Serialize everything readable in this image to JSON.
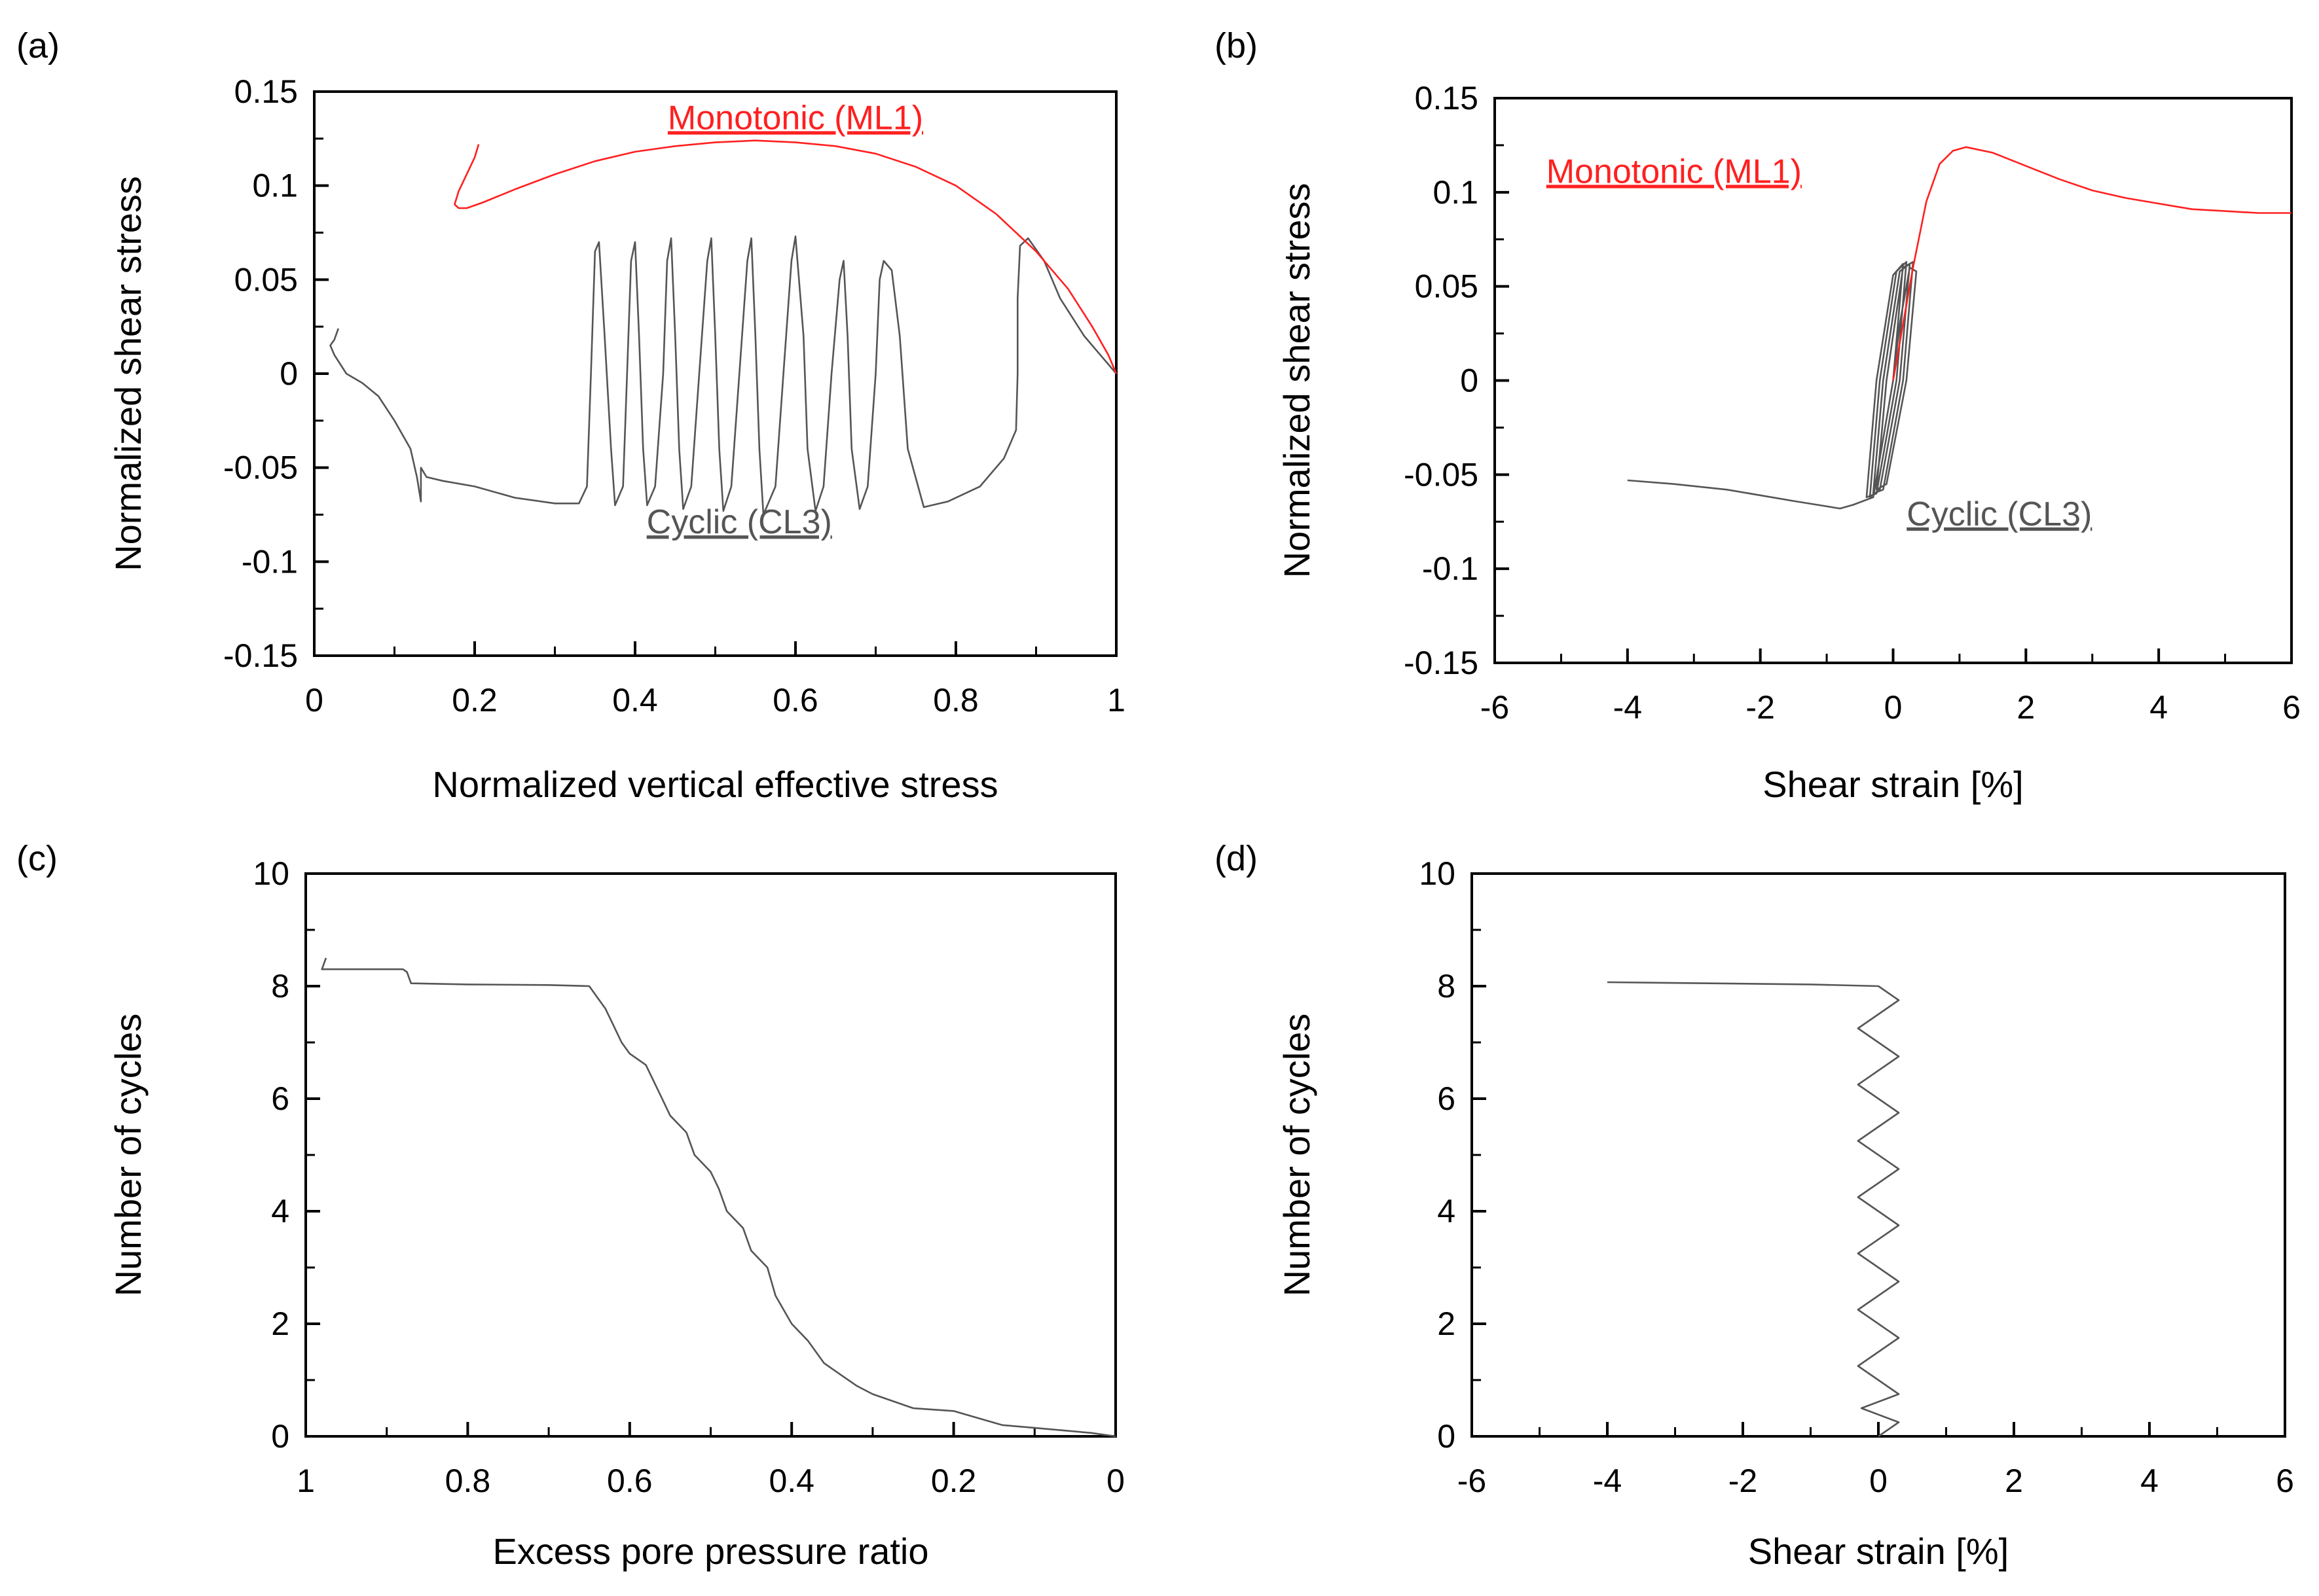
{
  "colors": {
    "cyclic": "#555555",
    "monotonic": "#ff2020",
    "axis": "#000000"
  },
  "chart_data": [
    {
      "panel": "(a)",
      "type": "line",
      "xlabel": "Normalized vertical effective stress",
      "ylabel": "Normalized shear stress",
      "xlim": [
        0,
        1
      ],
      "ylim": [
        -0.15,
        0.15
      ],
      "xticks": [
        0,
        0.2,
        0.4,
        0.6,
        0.8,
        1
      ],
      "xtick_labels": [
        "0",
        "0.2",
        "0.4",
        "0.6",
        "0.8",
        "1"
      ],
      "yticks": [
        -0.15,
        -0.1,
        -0.05,
        0,
        0.05,
        0.1,
        0.15
      ],
      "ytick_labels": [
        "-0.15",
        "-0.1",
        "-0.05",
        "0",
        "0.05",
        "0.1",
        "0.15"
      ],
      "annotations": [
        {
          "text": "Monotonic (ML1)",
          "series": "monotonic",
          "x": 0.6,
          "y": 0.13
        },
        {
          "text": "Cyclic (CL3)",
          "series": "cyclic",
          "x": 0.53,
          "y": -0.085
        }
      ],
      "series": [
        {
          "key": "cyclic",
          "points": [
            [
              1.0,
              0.0
            ],
            [
              0.99,
              0.005
            ],
            [
              0.98,
              0.01
            ],
            [
              0.96,
              0.02
            ],
            [
              0.93,
              0.04
            ],
            [
              0.91,
              0.06
            ],
            [
              0.89,
              0.072
            ],
            [
              0.88,
              0.068
            ],
            [
              0.877,
              0.04
            ],
            [
              0.877,
              0.0
            ],
            [
              0.875,
              -0.03
            ],
            [
              0.86,
              -0.045
            ],
            [
              0.83,
              -0.06
            ],
            [
              0.79,
              -0.068
            ],
            [
              0.76,
              -0.071
            ],
            [
              0.74,
              -0.04
            ],
            [
              0.73,
              0.02
            ],
            [
              0.72,
              0.055
            ],
            [
              0.71,
              0.06
            ],
            [
              0.705,
              0.05
            ],
            [
              0.7,
              0.0
            ],
            [
              0.69,
              -0.06
            ],
            [
              0.68,
              -0.072
            ],
            [
              0.67,
              -0.04
            ],
            [
              0.665,
              0.02
            ],
            [
              0.66,
              0.06
            ],
            [
              0.655,
              0.05
            ],
            [
              0.645,
              0.0
            ],
            [
              0.635,
              -0.06
            ],
            [
              0.625,
              -0.073
            ],
            [
              0.615,
              -0.04
            ],
            [
              0.61,
              0.02
            ],
            [
              0.6,
              0.073
            ],
            [
              0.595,
              0.06
            ],
            [
              0.585,
              0.0
            ],
            [
              0.575,
              -0.06
            ],
            [
              0.56,
              -0.075
            ],
            [
              0.555,
              -0.04
            ],
            [
              0.55,
              0.02
            ],
            [
              0.545,
              0.072
            ],
            [
              0.54,
              0.06
            ],
            [
              0.53,
              0.0
            ],
            [
              0.52,
              -0.06
            ],
            [
              0.51,
              -0.073
            ],
            [
              0.505,
              -0.04
            ],
            [
              0.5,
              0.02
            ],
            [
              0.495,
              0.072
            ],
            [
              0.49,
              0.06
            ],
            [
              0.48,
              0.0
            ],
            [
              0.47,
              -0.06
            ],
            [
              0.46,
              -0.072
            ],
            [
              0.455,
              -0.04
            ],
            [
              0.45,
              0.02
            ],
            [
              0.445,
              0.072
            ],
            [
              0.44,
              0.06
            ],
            [
              0.435,
              0.0
            ],
            [
              0.425,
              -0.06
            ],
            [
              0.415,
              -0.07
            ],
            [
              0.41,
              -0.04
            ],
            [
              0.405,
              0.02
            ],
            [
              0.4,
              0.07
            ],
            [
              0.395,
              0.06
            ],
            [
              0.39,
              0.0
            ],
            [
              0.385,
              -0.06
            ],
            [
              0.375,
              -0.07
            ],
            [
              0.37,
              -0.04
            ],
            [
              0.362,
              0.02
            ],
            [
              0.355,
              0.07
            ],
            [
              0.35,
              0.065
            ],
            [
              0.345,
              0.0
            ],
            [
              0.34,
              -0.06
            ],
            [
              0.33,
              -0.069
            ],
            [
              0.3,
              -0.069
            ],
            [
              0.25,
              -0.066
            ],
            [
              0.2,
              -0.06
            ],
            [
              0.16,
              -0.057
            ],
            [
              0.14,
              -0.055
            ],
            [
              0.133,
              -0.05
            ],
            [
              0.133,
              -0.068
            ],
            [
              0.128,
              -0.055
            ],
            [
              0.12,
              -0.04
            ],
            [
              0.1,
              -0.025
            ],
            [
              0.08,
              -0.012
            ],
            [
              0.06,
              -0.005
            ],
            [
              0.04,
              0.0
            ],
            [
              0.025,
              0.01
            ],
            [
              0.02,
              0.015
            ],
            [
              0.025,
              0.018
            ],
            [
              0.03,
              0.024
            ]
          ]
        },
        {
          "key": "monotonic",
          "points": [
            [
              1.0,
              0.0
            ],
            [
              0.99,
              0.01
            ],
            [
              0.97,
              0.025
            ],
            [
              0.94,
              0.045
            ],
            [
              0.9,
              0.065
            ],
            [
              0.85,
              0.085
            ],
            [
              0.8,
              0.1
            ],
            [
              0.75,
              0.11
            ],
            [
              0.7,
              0.117
            ],
            [
              0.65,
              0.121
            ],
            [
              0.6,
              0.123
            ],
            [
              0.55,
              0.124
            ],
            [
              0.5,
              0.123
            ],
            [
              0.45,
              0.121
            ],
            [
              0.4,
              0.118
            ],
            [
              0.35,
              0.113
            ],
            [
              0.3,
              0.106
            ],
            [
              0.25,
              0.098
            ],
            [
              0.21,
              0.091
            ],
            [
              0.19,
              0.088
            ],
            [
              0.18,
              0.088
            ],
            [
              0.175,
              0.09
            ],
            [
              0.18,
              0.097
            ],
            [
              0.19,
              0.106
            ],
            [
              0.2,
              0.115
            ],
            [
              0.205,
              0.122
            ]
          ]
        }
      ]
    },
    {
      "panel": "(b)",
      "type": "line",
      "xlabel": "Shear strain [%]",
      "ylabel": "Normalized shear stress",
      "xlim": [
        -6,
        6
      ],
      "ylim": [
        -0.15,
        0.15
      ],
      "xticks": [
        -6,
        -4,
        -2,
        0,
        2,
        4,
        6
      ],
      "xtick_labels": [
        "-6",
        "-4",
        "-2",
        "0",
        "2",
        "4",
        "6"
      ],
      "yticks": [
        -0.15,
        -0.1,
        -0.05,
        0,
        0.05,
        0.1,
        0.15
      ],
      "ytick_labels": [
        "-0.15",
        "-0.1",
        "-0.05",
        "0",
        "0.05",
        "0.1",
        "0.15"
      ],
      "annotations": [
        {
          "text": "Monotonic (ML1)",
          "series": "monotonic",
          "x": -3.3,
          "y": 0.105
        },
        {
          "text": "Cyclic (CL3)",
          "series": "cyclic",
          "x": 1.6,
          "y": -0.077
        }
      ],
      "series": [
        {
          "key": "cyclic",
          "points": [
            [
              0.0,
              0.0
            ],
            [
              0.1,
              0.03
            ],
            [
              0.25,
              0.06
            ],
            [
              0.35,
              0.058
            ],
            [
              0.2,
              0.0
            ],
            [
              -0.1,
              -0.055
            ],
            [
              -0.25,
              -0.058
            ],
            [
              -0.1,
              0.0
            ],
            [
              0.15,
              0.06
            ],
            [
              0.3,
              0.063
            ],
            [
              0.15,
              0.0
            ],
            [
              -0.15,
              -0.058
            ],
            [
              -0.3,
              -0.06
            ],
            [
              -0.15,
              0.0
            ],
            [
              0.1,
              0.058
            ],
            [
              0.25,
              0.062
            ],
            [
              0.1,
              0.0
            ],
            [
              -0.2,
              -0.058
            ],
            [
              -0.35,
              -0.062
            ],
            [
              -0.2,
              0.0
            ],
            [
              0.05,
              0.058
            ],
            [
              0.2,
              0.063
            ],
            [
              0.05,
              0.0
            ],
            [
              -0.25,
              -0.06
            ],
            [
              -0.4,
              -0.062
            ],
            [
              -0.25,
              0.0
            ],
            [
              0.0,
              0.056
            ],
            [
              0.15,
              0.062
            ],
            [
              0.0,
              0.0
            ],
            [
              -0.3,
              -0.062
            ],
            [
              -0.45,
              -0.064
            ],
            [
              -0.6,
              -0.066
            ],
            [
              -0.8,
              -0.068
            ],
            [
              -1.5,
              -0.064
            ],
            [
              -2.5,
              -0.058
            ],
            [
              -3.3,
              -0.055
            ],
            [
              -4.0,
              -0.053
            ]
          ]
        },
        {
          "key": "monotonic",
          "points": [
            [
              0.0,
              0.0
            ],
            [
              0.15,
              0.03
            ],
            [
              0.3,
              0.06
            ],
            [
              0.5,
              0.095
            ],
            [
              0.7,
              0.115
            ],
            [
              0.9,
              0.122
            ],
            [
              1.1,
              0.124
            ],
            [
              1.5,
              0.121
            ],
            [
              2.0,
              0.114
            ],
            [
              2.5,
              0.107
            ],
            [
              3.0,
              0.101
            ],
            [
              3.5,
              0.097
            ],
            [
              4.0,
              0.094
            ],
            [
              4.5,
              0.091
            ],
            [
              5.0,
              0.09
            ],
            [
              5.5,
              0.089
            ],
            [
              6.0,
              0.089
            ]
          ]
        }
      ]
    },
    {
      "panel": "(c)",
      "type": "line",
      "xlabel": "Excess pore pressure ratio",
      "ylabel": "Number of cycles",
      "xlim": [
        1,
        0
      ],
      "ylim": [
        0,
        10
      ],
      "xticks": [
        1,
        0.8,
        0.6,
        0.4,
        0.2,
        0
      ],
      "xtick_labels": [
        "1",
        "0.8",
        "0.6",
        "0.4",
        "0.2",
        "0"
      ],
      "yticks": [
        0,
        2,
        4,
        6,
        8,
        10
      ],
      "ytick_labels": [
        "0",
        "2",
        "4",
        "6",
        "8",
        "10"
      ],
      "series": [
        {
          "key": "cyclic",
          "points": [
            [
              0.0,
              0.0
            ],
            [
              0.03,
              0.06
            ],
            [
              0.1,
              0.15
            ],
            [
              0.14,
              0.2
            ],
            [
              0.2,
              0.45
            ],
            [
              0.25,
              0.5
            ],
            [
              0.3,
              0.75
            ],
            [
              0.32,
              0.9
            ],
            [
              0.34,
              1.1
            ],
            [
              0.36,
              1.3
            ],
            [
              0.38,
              1.7
            ],
            [
              0.4,
              2.0
            ],
            [
              0.42,
              2.5
            ],
            [
              0.43,
              3.0
            ],
            [
              0.45,
              3.3
            ],
            [
              0.46,
              3.7
            ],
            [
              0.48,
              4.0
            ],
            [
              0.49,
              4.4
            ],
            [
              0.5,
              4.7
            ],
            [
              0.52,
              5.0
            ],
            [
              0.53,
              5.4
            ],
            [
              0.55,
              5.7
            ],
            [
              0.56,
              6.0
            ],
            [
              0.57,
              6.3
            ],
            [
              0.58,
              6.6
            ],
            [
              0.6,
              6.8
            ],
            [
              0.61,
              7.0
            ],
            [
              0.62,
              7.3
            ],
            [
              0.63,
              7.6
            ],
            [
              0.64,
              7.8
            ],
            [
              0.65,
              8.0
            ],
            [
              0.7,
              8.02
            ],
            [
              0.8,
              8.03
            ],
            [
              0.87,
              8.05
            ],
            [
              0.875,
              8.25
            ],
            [
              0.88,
              8.3
            ],
            [
              0.95,
              8.3
            ],
            [
              0.98,
              8.3
            ],
            [
              0.975,
              8.5
            ]
          ]
        }
      ]
    },
    {
      "panel": "(d)",
      "type": "line",
      "xlabel": "Shear strain [%]",
      "ylabel": "Number of cycles",
      "xlim": [
        -6,
        6
      ],
      "ylim": [
        0,
        10
      ],
      "xticks": [
        -6,
        -4,
        -2,
        0,
        2,
        4,
        6
      ],
      "xtick_labels": [
        "-6",
        "-4",
        "-2",
        "0",
        "2",
        "4",
        "6"
      ],
      "yticks": [
        0,
        2,
        4,
        6,
        8,
        10
      ],
      "ytick_labels": [
        "0",
        "2",
        "4",
        "6",
        "8",
        "10"
      ],
      "series": [
        {
          "key": "cyclic",
          "points": [
            [
              0.0,
              0.0
            ],
            [
              0.3,
              0.25
            ],
            [
              -0.25,
              0.5
            ],
            [
              0.3,
              0.75
            ],
            [
              -0.3,
              1.25
            ],
            [
              0.3,
              1.75
            ],
            [
              -0.3,
              2.25
            ],
            [
              0.3,
              2.75
            ],
            [
              -0.3,
              3.25
            ],
            [
              0.3,
              3.75
            ],
            [
              -0.3,
              4.25
            ],
            [
              0.3,
              4.75
            ],
            [
              -0.3,
              5.25
            ],
            [
              0.3,
              5.75
            ],
            [
              -0.3,
              6.25
            ],
            [
              0.3,
              6.75
            ],
            [
              -0.3,
              7.25
            ],
            [
              0.3,
              7.75
            ],
            [
              0.0,
              8.0
            ],
            [
              -1.0,
              8.03
            ],
            [
              -2.5,
              8.05
            ],
            [
              -4.0,
              8.07
            ]
          ]
        }
      ]
    }
  ]
}
